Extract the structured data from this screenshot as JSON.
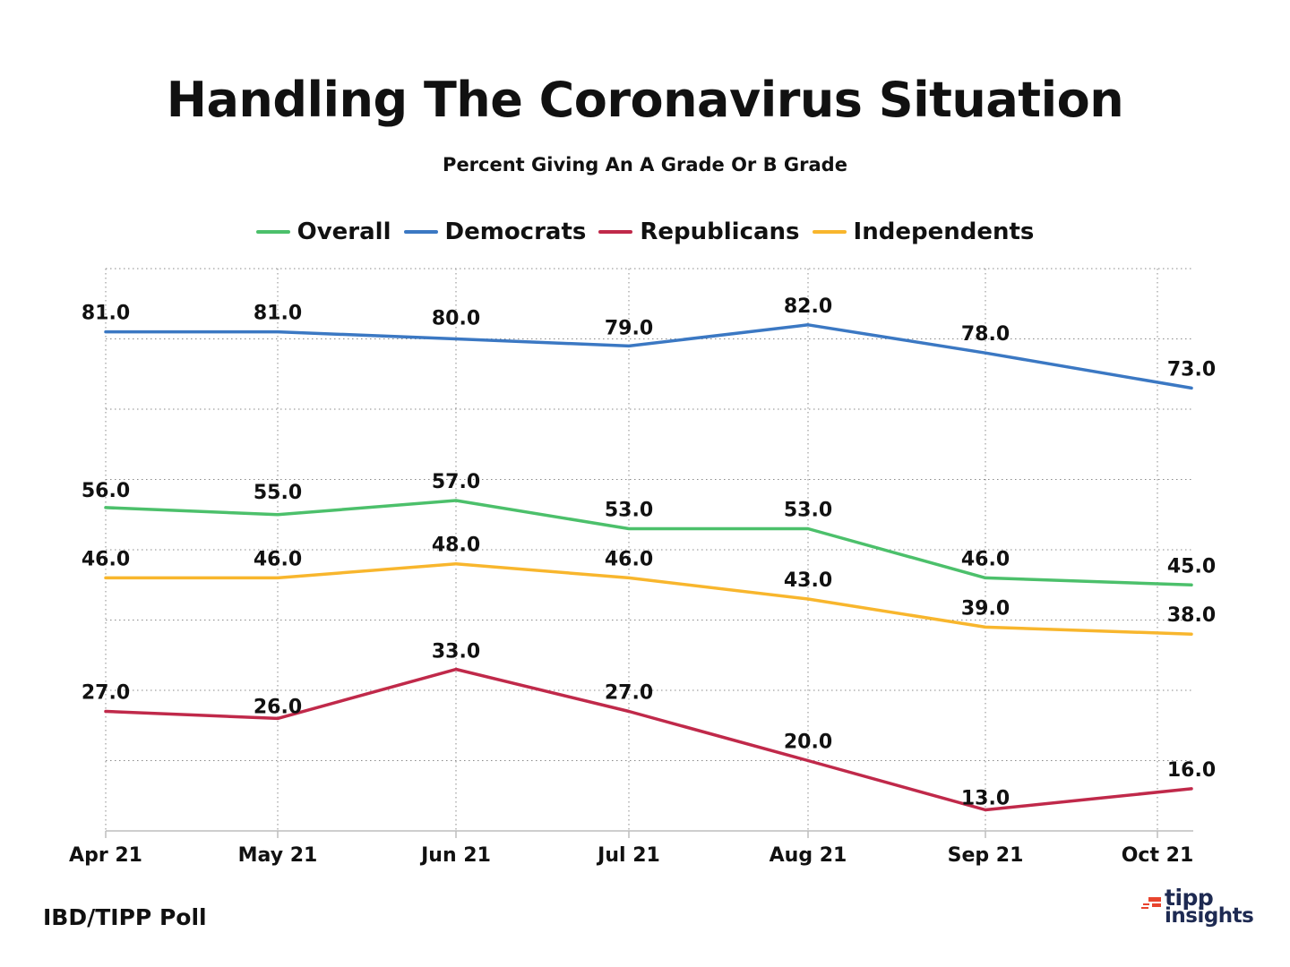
{
  "chart_data": {
    "type": "line",
    "title": "Handling The Coronavirus Situation",
    "subtitle": "Percent Giving An A Grade Or B Grade",
    "categories": [
      "Apr 21",
      "May 21",
      "Jun 21",
      "Jul 21",
      "Aug 21",
      "Sep 21",
      "Oct 21"
    ],
    "ylim": [
      10,
      90
    ],
    "grid": true,
    "legend_position": "top-center",
    "series": [
      {
        "name": "Overall",
        "color": "#4cc06b",
        "values": [
          56.0,
          55.0,
          57.0,
          53.0,
          53.0,
          46.0,
          45.0
        ],
        "labels": [
          "56.0",
          "55.0",
          "57.0",
          "53.0",
          "53.0",
          "46.0",
          "45.0"
        ]
      },
      {
        "name": "Democrats",
        "color": "#3b78c3",
        "values": [
          81.0,
          81.0,
          80.0,
          79.0,
          82.0,
          78.0,
          73.0
        ],
        "labels": [
          "81.0",
          "81.0",
          "80.0",
          "79.0",
          "82.0",
          "78.0",
          "73.0"
        ]
      },
      {
        "name": "Republicans",
        "color": "#c0294a",
        "values": [
          27.0,
          26.0,
          33.0,
          27.0,
          20.0,
          13.0,
          16.0
        ],
        "labels": [
          "27.0",
          "26.0",
          "33.0",
          "27.0",
          "20.0",
          "13.0",
          "16.0"
        ]
      },
      {
        "name": "Independents",
        "color": "#f8b62d",
        "values": [
          46.0,
          46.0,
          48.0,
          46.0,
          43.0,
          39.0,
          38.0
        ],
        "labels": [
          "46.0",
          "46.0",
          "48.0",
          "46.0",
          "43.0",
          "39.0",
          "38.0"
        ]
      }
    ]
  },
  "footer": {
    "source": "IBD/TIPP Poll",
    "logo_line1": "tipp",
    "logo_line2": "insights",
    "logo_color": "#1e2a52",
    "logo_accent": "#e8442e"
  }
}
